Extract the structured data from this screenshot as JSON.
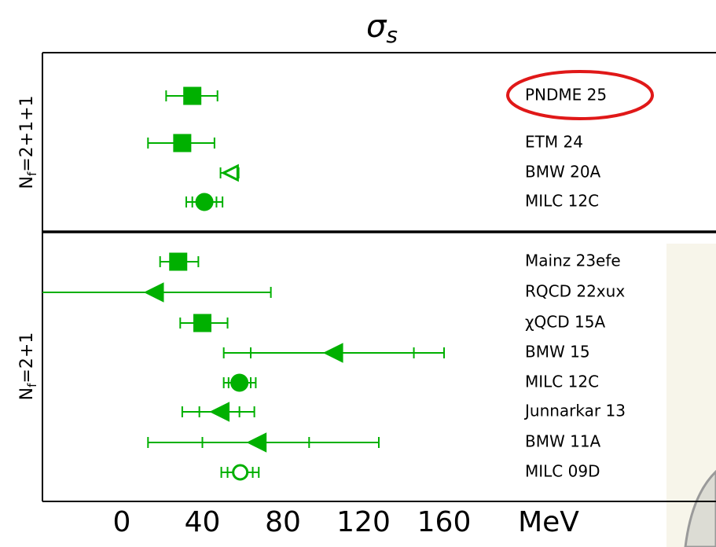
{
  "chart_data": {
    "type": "errorbar",
    "title": "σ",
    "title_subscript": "s",
    "x_label": "MeV",
    "xlim": [
      -39,
      294
    ],
    "xticks": [
      0,
      40,
      80,
      120,
      160
    ],
    "color": "#00b000",
    "groups": [
      {
        "label": {
          "base": "N",
          "sub": "f",
          "rest": "=2+1+1"
        },
        "entries": [
          {
            "name": "PNDME 25",
            "value": 35,
            "lo": 22,
            "hi": 47.5,
            "marker": "square",
            "filled": true
          },
          {
            "name": "ETM 24",
            "value": 30,
            "lo": 13,
            "hi": 46,
            "marker": "square",
            "filled": true
          },
          {
            "name": "BMW 20A",
            "value": 54,
            "lo": 49,
            "hi": 58,
            "marker": "triangle",
            "filled": false
          },
          {
            "name": "MILC 12C",
            "value": 41,
            "lo": 32,
            "hi": 50,
            "stat_lo": 35,
            "stat_hi": 47,
            "marker": "circle",
            "filled": true
          }
        ]
      },
      {
        "label": {
          "base": "N",
          "sub": "f",
          "rest": "=2+1"
        },
        "entries": [
          {
            "name": "Mainz 23efe",
            "value": 28,
            "lo": 19,
            "hi": 38,
            "marker": "square",
            "filled": true
          },
          {
            "name": "RQCD 22xux",
            "value": 16,
            "lo": -45,
            "hi": 74,
            "marker": "triangle",
            "filled": true
          },
          {
            "name": "χQCD 15A",
            "value": 40,
            "lo": 29,
            "hi": 52.5,
            "marker": "square",
            "filled": true
          },
          {
            "name": "BMW 15",
            "value": 105,
            "lo": 50.6,
            "hi": 160,
            "stat_lo": 64,
            "stat_hi": 145,
            "marker": "triangle",
            "filled": true
          },
          {
            "name": "MILC 12C",
            "value": 58.4,
            "lo": 50.6,
            "hi": 66.5,
            "stat_lo": 53,
            "stat_hi": 64,
            "marker": "circle",
            "filled": true
          },
          {
            "name": "Junnarkar 13",
            "value": 48.6,
            "lo": 30,
            "hi": 65.8,
            "stat_lo": 38.5,
            "stat_hi": 58.4,
            "marker": "triangle",
            "filled": true
          },
          {
            "name": "BMW 11A",
            "value": 67,
            "lo": 13,
            "hi": 127.6,
            "stat_lo": 40,
            "stat_hi": 93,
            "marker": "triangle",
            "filled": true
          },
          {
            "name": "MILC 09D",
            "value": 58.8,
            "lo": 49.4,
            "hi": 68,
            "stat_lo": 52.5,
            "stat_hi": 65,
            "marker": "circle",
            "filled": false
          }
        ]
      }
    ]
  }
}
